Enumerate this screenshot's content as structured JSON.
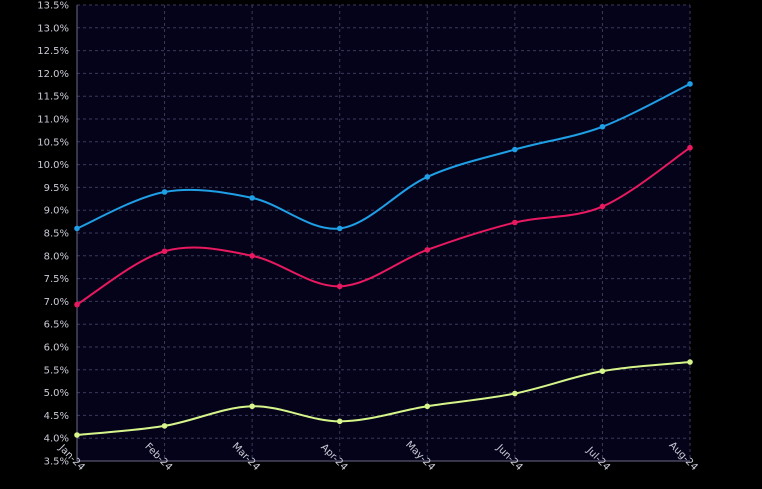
{
  "chart_data": {
    "type": "line",
    "categories": [
      "Jan-24",
      "Feb-24",
      "Mar-24",
      "Apr-24",
      "May-24",
      "Jun-24",
      "Jul-24",
      "Aug-24"
    ],
    "ylim": [
      3.5,
      13.5
    ],
    "ytick_step": 0.5,
    "ytick_format": "percent-1dp",
    "grid": true,
    "legend": "none",
    "series": [
      {
        "color": "#1f9fe6",
        "values": [
          8.6,
          9.4,
          9.27,
          8.6,
          9.73,
          10.33,
          10.83,
          11.77
        ]
      },
      {
        "color": "#e8195f",
        "values": [
          6.93,
          8.1,
          8.0,
          7.33,
          8.13,
          8.73,
          9.08,
          10.37
        ]
      },
      {
        "color": "#d6f58a",
        "values": [
          4.07,
          4.27,
          4.7,
          4.37,
          4.7,
          4.98,
          5.47,
          5.67
        ]
      }
    ]
  },
  "colors": {
    "background": "#05031a",
    "grid": "#3a3a5a",
    "tick_text": "#c9cbd6"
  }
}
